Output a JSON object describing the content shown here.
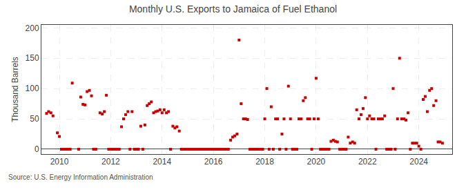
{
  "chart_data": {
    "type": "scatter",
    "title": "Monthly U.S. Exports to Jamaica of Fuel Ethanol",
    "ylabel": "Thousand Barrels",
    "annotations": [
      "Source: U.S. Energy Information Administration"
    ],
    "color": "#cc0000",
    "marker": "square",
    "grid": true,
    "xlim": [
      2009.3,
      2025.3
    ],
    "ylim": [
      -8,
      205
    ],
    "xticks": [
      2010,
      2012,
      2014,
      2016,
      2018,
      2020,
      2022,
      2024
    ],
    "yticks": [
      0,
      50,
      100,
      150,
      200
    ],
    "x": [
      2009.5,
      2009.58,
      2009.67,
      2009.75,
      2009.92,
      2010.0,
      2010.08,
      2010.17,
      2010.25,
      2010.33,
      2010.42,
      2010.5,
      2010.75,
      2010.83,
      2010.92,
      2011.0,
      2011.08,
      2011.17,
      2011.25,
      2011.33,
      2011.42,
      2011.58,
      2011.67,
      2011.75,
      2011.83,
      2011.92,
      2012.0,
      2012.08,
      2012.17,
      2012.25,
      2012.33,
      2012.42,
      2012.5,
      2012.58,
      2012.67,
      2012.75,
      2012.83,
      2012.92,
      2013.0,
      2013.08,
      2013.17,
      2013.25,
      2013.33,
      2013.42,
      2013.5,
      2013.58,
      2013.67,
      2013.75,
      2013.83,
      2013.92,
      2014.0,
      2014.08,
      2014.17,
      2014.25,
      2014.33,
      2014.42,
      2014.5,
      2014.58,
      2014.67,
      2014.75,
      2014.83,
      2014.92,
      2015.0,
      2015.08,
      2015.17,
      2015.25,
      2015.33,
      2015.42,
      2015.5,
      2015.58,
      2015.67,
      2015.75,
      2015.83,
      2015.92,
      2016.0,
      2016.08,
      2016.17,
      2016.25,
      2016.33,
      2016.42,
      2016.5,
      2016.58,
      2016.67,
      2016.75,
      2016.83,
      2016.92,
      2017.0,
      2017.08,
      2017.17,
      2017.25,
      2017.33,
      2017.42,
      2017.5,
      2017.58,
      2017.67,
      2017.75,
      2017.83,
      2017.92,
      2018.0,
      2018.08,
      2018.17,
      2018.25,
      2018.33,
      2018.42,
      2018.5,
      2018.58,
      2018.67,
      2018.75,
      2018.83,
      2018.92,
      2019.0,
      2019.08,
      2019.17,
      2019.25,
      2019.33,
      2019.42,
      2019.5,
      2019.58,
      2019.67,
      2019.75,
      2019.83,
      2019.92,
      2020.0,
      2020.08,
      2020.17,
      2020.25,
      2020.33,
      2020.42,
      2020.5,
      2020.58,
      2020.67,
      2020.75,
      2020.83,
      2020.92,
      2021.0,
      2021.08,
      2021.17,
      2021.25,
      2021.33,
      2021.42,
      2021.5,
      2021.58,
      2021.67,
      2021.75,
      2021.83,
      2021.92,
      2022.0,
      2022.08,
      2022.17,
      2022.25,
      2022.33,
      2022.42,
      2022.5,
      2022.58,
      2022.67,
      2022.75,
      2022.83,
      2022.92,
      2023.0,
      2023.08,
      2023.17,
      2023.25,
      2023.33,
      2023.42,
      2023.5,
      2023.58,
      2023.67,
      2023.75,
      2023.83,
      2023.92,
      2024.0,
      2024.08,
      2024.17,
      2024.25,
      2024.33,
      2024.42,
      2024.5,
      2024.58,
      2024.67,
      2024.75,
      2024.83,
      2024.92
    ],
    "values": [
      59,
      62,
      60,
      55,
      27,
      21,
      0,
      0,
      0,
      0,
      0,
      109,
      0,
      86,
      74,
      73,
      95,
      97,
      88,
      0,
      0,
      60,
      58,
      62,
      89,
      0,
      0,
      0,
      0,
      0,
      0,
      37,
      50,
      57,
      62,
      0,
      62,
      0,
      0,
      0,
      38,
      0,
      40,
      72,
      75,
      78,
      60,
      62,
      63,
      65,
      60,
      65,
      60,
      62,
      0,
      38,
      35,
      37,
      30,
      0,
      0,
      0,
      0,
      0,
      0,
      0,
      0,
      0,
      0,
      0,
      0,
      0,
      0,
      0,
      0,
      0,
      0,
      0,
      0,
      0,
      0,
      0,
      15,
      20,
      22,
      25,
      180,
      75,
      50,
      50,
      49,
      0,
      0,
      0,
      0,
      0,
      0,
      0,
      50,
      100,
      0,
      70,
      0,
      50,
      50,
      0,
      25,
      50,
      0,
      104,
      50,
      0,
      0,
      0,
      50,
      50,
      80,
      85,
      50,
      50,
      0,
      50,
      117,
      50,
      0,
      0,
      0,
      0,
      0,
      13,
      15,
      13,
      12,
      0,
      0,
      0,
      0,
      20,
      10,
      12,
      10,
      65,
      50,
      57,
      67,
      85,
      50,
      55,
      50,
      50,
      0,
      50,
      50,
      50,
      55,
      0,
      0,
      0,
      100,
      0,
      50,
      150,
      50,
      50,
      48,
      60,
      0,
      10,
      10,
      10,
      5,
      0,
      82,
      87,
      62,
      97,
      100,
      72,
      80,
      12,
      12,
      10
    ]
  }
}
